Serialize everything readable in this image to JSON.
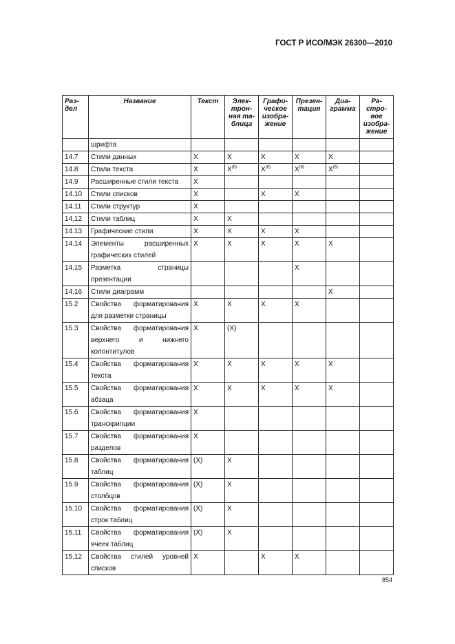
{
  "header": "ГОСТ Р ИСО/МЭК 26300—2010",
  "page_number": "854",
  "columns": [
    "Раз-\nдел",
    "Название",
    "Текст",
    "Элек-\nтрон-\nная та-\nблица",
    "Графи-\nческое\nизобра-\nжение",
    "Презен-\nтация",
    "Диа-\nграмма",
    "Ра-\nстро-\nвое\nизобра-\nжение"
  ],
  "rows": [
    {
      "section": "",
      "name": "шрифта",
      "cells": [
        "",
        "",
        "",
        "",
        "",
        ""
      ]
    },
    {
      "section": "14.7",
      "name": "Стили данных",
      "cells": [
        "X",
        "X",
        "X",
        "X",
        "X",
        ""
      ]
    },
    {
      "section": "14.8",
      "name": "Стили текста",
      "cells": [
        "X",
        "X(6)",
        "X(6)",
        "X(6)",
        "X(6)",
        ""
      ]
    },
    {
      "section": "14.9",
      "name": "Расширенные стили текста",
      "cells": [
        "X",
        "",
        "",
        "",
        "",
        ""
      ]
    },
    {
      "section": "14.10",
      "name": "Стили списков",
      "cells": [
        "X",
        "",
        "X",
        "X",
        "",
        ""
      ]
    },
    {
      "section": "14.11",
      "name": "Стили структур",
      "cells": [
        "X",
        "",
        "",
        "",
        "",
        ""
      ]
    },
    {
      "section": "14.12",
      "name": "Стили таблиц",
      "cells": [
        "X",
        "X",
        "",
        "",
        "",
        ""
      ]
    },
    {
      "section": "14.13",
      "name": "Графические стили",
      "cells": [
        "X",
        "X",
        "X",
        "X",
        "",
        ""
      ]
    },
    {
      "section": "14.14",
      "name": "Элементы расширенных графических стилей",
      "cells": [
        "X",
        "X",
        "X",
        "X",
        "X",
        ""
      ]
    },
    {
      "section": "14.15",
      "name": "Разметка страницы презентации",
      "cells": [
        "",
        "",
        "",
        "X",
        "",
        ""
      ]
    },
    {
      "section": "14.16",
      "name": "Стили диаграмм",
      "cells": [
        "",
        "",
        "",
        "",
        "X",
        ""
      ]
    },
    {
      "section": "15.2",
      "name": "Свойства форматирования для разметки страницы",
      "cells": [
        "X",
        "X",
        "X",
        "X",
        "",
        ""
      ]
    },
    {
      "section": "15.3",
      "name": "Свойства форматирования верхнего и нижнего колонтитулов",
      "cells": [
        "X",
        "(X)",
        "",
        "",
        "",
        ""
      ]
    },
    {
      "section": "15.4",
      "name": "Свойства форматирования текста",
      "cells": [
        "X",
        "X",
        "X",
        "X",
        "X",
        ""
      ]
    },
    {
      "section": "15.5",
      "name": "Свойства форматирования абзаца",
      "cells": [
        "X",
        "X",
        "X",
        "X",
        "X",
        ""
      ]
    },
    {
      "section": "15.6",
      "name": "Свойства форматирования транскрипции",
      "cells": [
        "X",
        "",
        "",
        "",
        "",
        ""
      ]
    },
    {
      "section": "15.7",
      "name": "Свойства форматирования разделов",
      "cells": [
        "X",
        "",
        "",
        "",
        "",
        ""
      ]
    },
    {
      "section": "15.8",
      "name": "Свойства форматирования таблиц",
      "cells": [
        "(X)",
        "X",
        "",
        "",
        "",
        ""
      ]
    },
    {
      "section": "15.9",
      "name": "Свойства форматирования столбцов",
      "cells": [
        "(X)",
        "X",
        "",
        "",
        "",
        ""
      ]
    },
    {
      "section": "15.10",
      "name": "Свойства форматирования строк таблиц",
      "cells": [
        "(X)",
        "X",
        "",
        "",
        "",
        ""
      ]
    },
    {
      "section": "15.11",
      "name": "Свойства форматирования ячеек таблиц",
      "cells": [
        "(X)",
        "X",
        "",
        "",
        "",
        ""
      ]
    },
    {
      "section": "15.12",
      "name": "Свойства стилей уровней списков",
      "cells": [
        "X",
        "",
        "X",
        "X",
        "",
        ""
      ]
    }
  ]
}
